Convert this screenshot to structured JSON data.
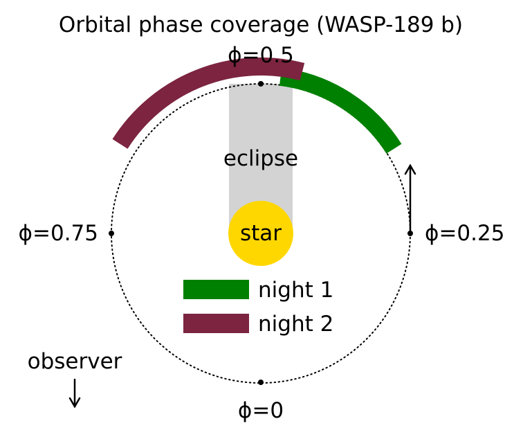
{
  "title": "Orbital phase coverage (WASP-189 b)",
  "phase_labels": {
    "p0": "ϕ=0",
    "p25": "ϕ=0.25",
    "p5": "ϕ=0.5",
    "p75": "ϕ=0.75"
  },
  "eclipse_label": "eclipse",
  "star_label": "star",
  "observer_label": "observer",
  "colors": {
    "night1": "#008000",
    "night2": "#7c2440",
    "star": "#ffd700",
    "eclipse": "#d3d3d3"
  },
  "chart_data": {
    "type": "orbit-phase-diagram",
    "phase_ticks": [
      0,
      0.25,
      0.5,
      0.75
    ],
    "series": [
      {
        "name": "night 1",
        "phase_start": 0.34,
        "phase_end": 0.48
      },
      {
        "name": "night 2",
        "phase_start": 0.46,
        "phase_end": 0.66
      }
    ],
    "direction_of_motion": "counter-clockwise"
  }
}
